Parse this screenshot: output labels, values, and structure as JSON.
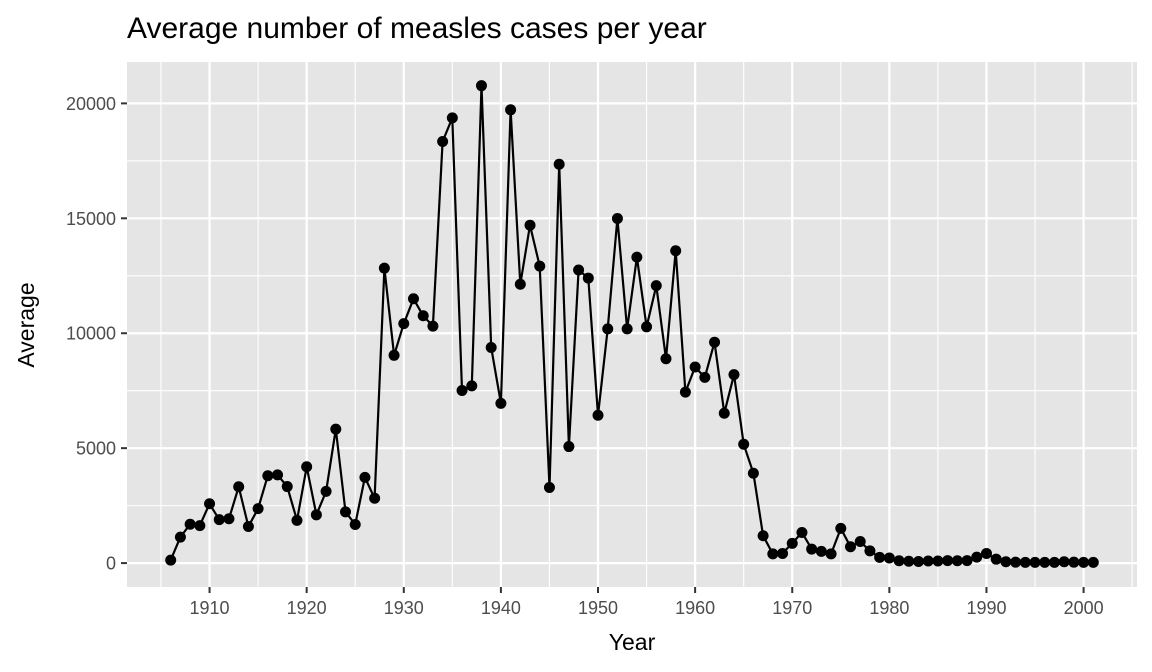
{
  "chart_data": {
    "type": "line",
    "title": "Average number of measles cases per year",
    "xlabel": "Year",
    "ylabel": "Average",
    "xlim": [
      1901.5,
      2005.5
    ],
    "ylim": [
      -1040,
      21800
    ],
    "x_ticks": [
      1910,
      1920,
      1930,
      1940,
      1950,
      1960,
      1970,
      1980,
      1990,
      2000
    ],
    "x_tick_labels": [
      "1910",
      "1920",
      "1930",
      "1940",
      "1950",
      "1960",
      "1970",
      "1980",
      "1990",
      "2000"
    ],
    "x_minor_ticks": [
      1905,
      1915,
      1925,
      1935,
      1945,
      1955,
      1965,
      1975,
      1985,
      1995,
      2005
    ],
    "y_ticks": [
      0,
      5000,
      10000,
      15000,
      20000
    ],
    "y_tick_labels": [
      "0",
      "5000",
      "10000",
      "15000",
      "20000"
    ],
    "y_minor_ticks": [
      2500,
      7500,
      12500,
      17500
    ],
    "grid": true,
    "legend": "none",
    "colors": {
      "panel_background": "#e5e5e5",
      "grid": "#ffffff",
      "series": "#000000",
      "tick_text": "#4d4d4d",
      "tick_mark": "#333333"
    },
    "series": [
      {
        "name": "Average",
        "markers": true,
        "x": [
          1906,
          1907,
          1908,
          1909,
          1910,
          1911,
          1912,
          1913,
          1914,
          1915,
          1916,
          1917,
          1918,
          1919,
          1920,
          1921,
          1922,
          1923,
          1924,
          1925,
          1926,
          1927,
          1928,
          1929,
          1930,
          1931,
          1932,
          1933,
          1934,
          1935,
          1936,
          1937,
          1938,
          1939,
          1940,
          1941,
          1942,
          1943,
          1944,
          1945,
          1946,
          1947,
          1948,
          1949,
          1950,
          1951,
          1952,
          1953,
          1954,
          1955,
          1956,
          1957,
          1958,
          1959,
          1960,
          1961,
          1962,
          1963,
          1964,
          1965,
          1966,
          1967,
          1968,
          1969,
          1970,
          1971,
          1972,
          1973,
          1974,
          1975,
          1976,
          1977,
          1978,
          1979,
          1980,
          1981,
          1982,
          1983,
          1984,
          1985,
          1986,
          1987,
          1988,
          1989,
          1990,
          1991,
          1992,
          1993,
          1994,
          1995,
          1996,
          1997,
          1998,
          1999,
          2000,
          2001
        ],
        "y": [
          130,
          1130,
          1690,
          1630,
          2580,
          1890,
          1930,
          3320,
          1590,
          2370,
          3800,
          3840,
          3330,
          1860,
          4190,
          2100,
          3120,
          5830,
          2230,
          1680,
          3730,
          2820,
          12830,
          9040,
          10420,
          11500,
          10760,
          10310,
          18340,
          19370,
          7510,
          7710,
          20770,
          9380,
          6950,
          19720,
          12130,
          14700,
          12920,
          3290,
          17350,
          5070,
          12750,
          12400,
          6430,
          10190,
          14990,
          10190,
          13310,
          10280,
          12070,
          8890,
          13590,
          7440,
          8530,
          8080,
          9610,
          6520,
          8200,
          5170,
          3910,
          1190,
          400,
          420,
          860,
          1330,
          610,
          510,
          400,
          1510,
          710,
          940,
          530,
          250,
          220,
          100,
          80,
          70,
          90,
          90,
          110,
          100,
          110,
          260,
          420,
          170,
          60,
          40,
          30,
          30,
          30,
          30,
          60,
          40,
          30,
          30
        ]
      }
    ]
  }
}
